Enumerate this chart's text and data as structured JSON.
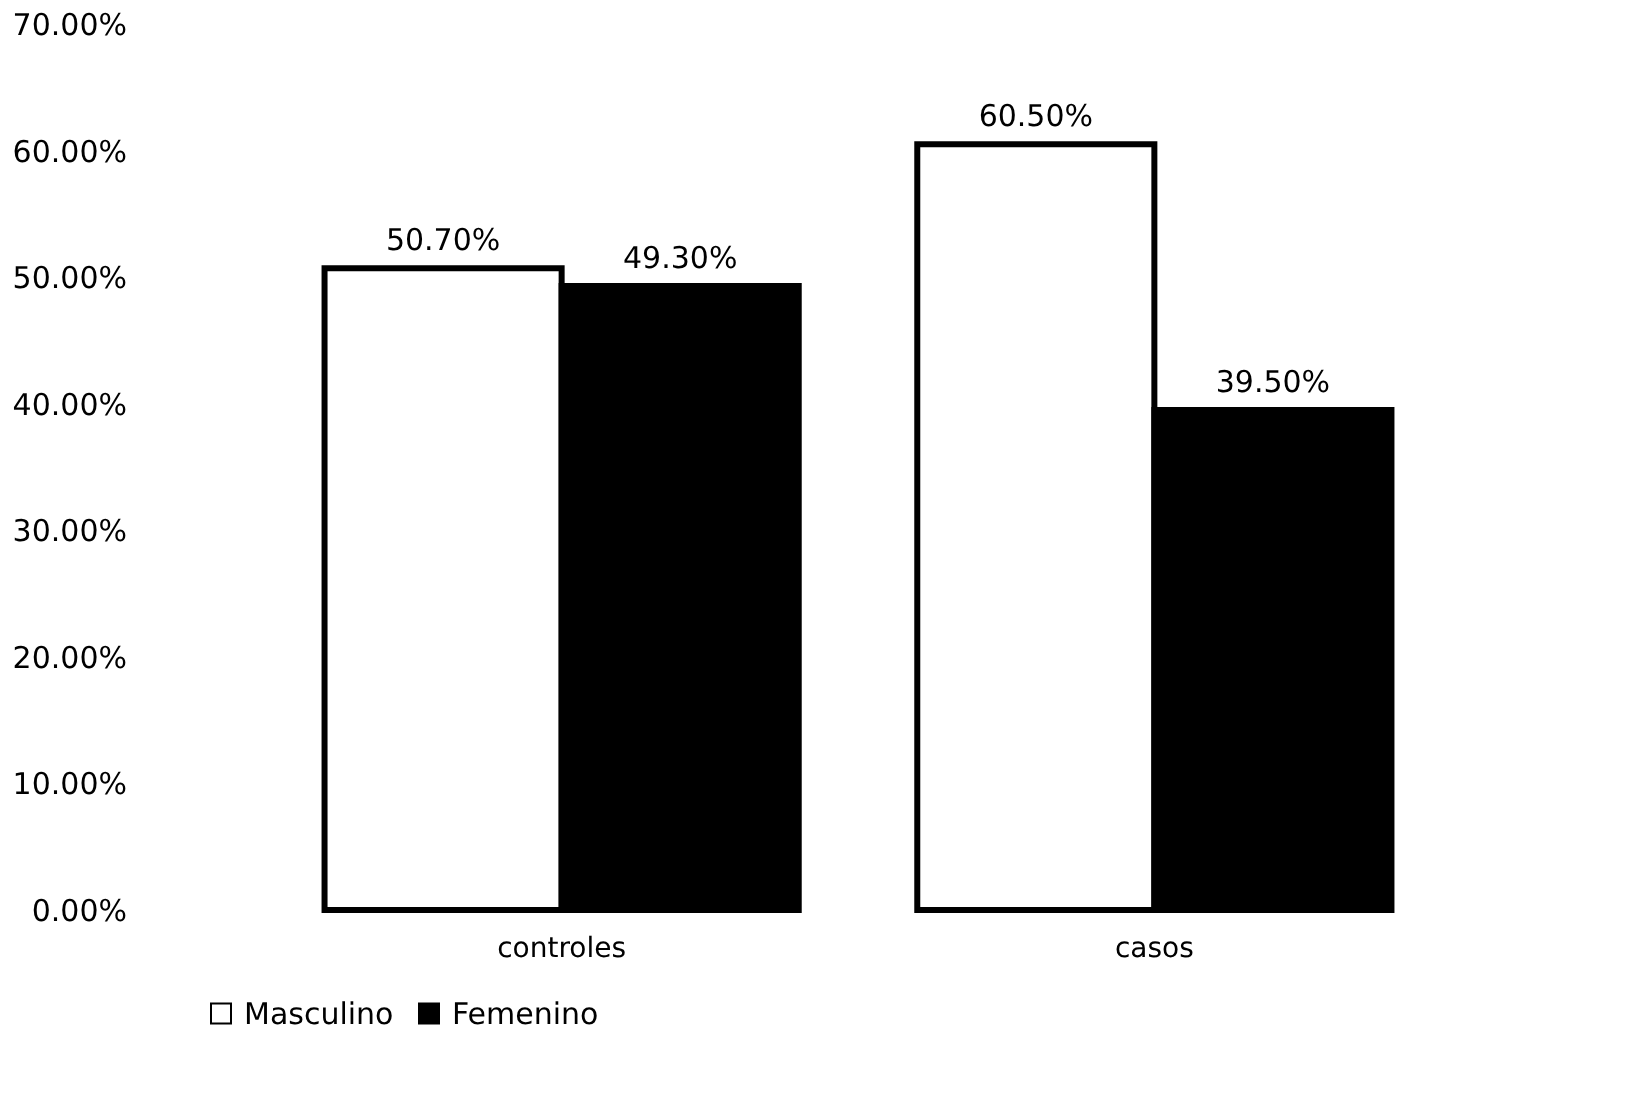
{
  "chart_data": {
    "type": "bar",
    "categories": [
      "controles",
      "casos"
    ],
    "series": [
      {
        "name": "Masculino",
        "color": "#ffffff",
        "values": [
          50.7,
          60.5
        ],
        "value_labels": [
          "50.70%",
          "60.50%"
        ]
      },
      {
        "name": "Femenino",
        "color": "#000000",
        "values": [
          49.3,
          39.5
        ],
        "value_labels": [
          "49.30%",
          "39.50%"
        ]
      }
    ],
    "ylim": [
      0,
      70
    ],
    "yticks": [
      {
        "value": 0,
        "label": "0.00%"
      },
      {
        "value": 10,
        "label": "10.00%"
      },
      {
        "value": 20,
        "label": "20.00%"
      },
      {
        "value": 30,
        "label": "30.00%"
      },
      {
        "value": 40,
        "label": "40.00%"
      },
      {
        "value": 50,
        "label": "50.00%"
      },
      {
        "value": 60,
        "label": "60.00%"
      },
      {
        "value": 70,
        "label": "70.00%"
      }
    ],
    "grid": false,
    "legend": "bottom"
  }
}
